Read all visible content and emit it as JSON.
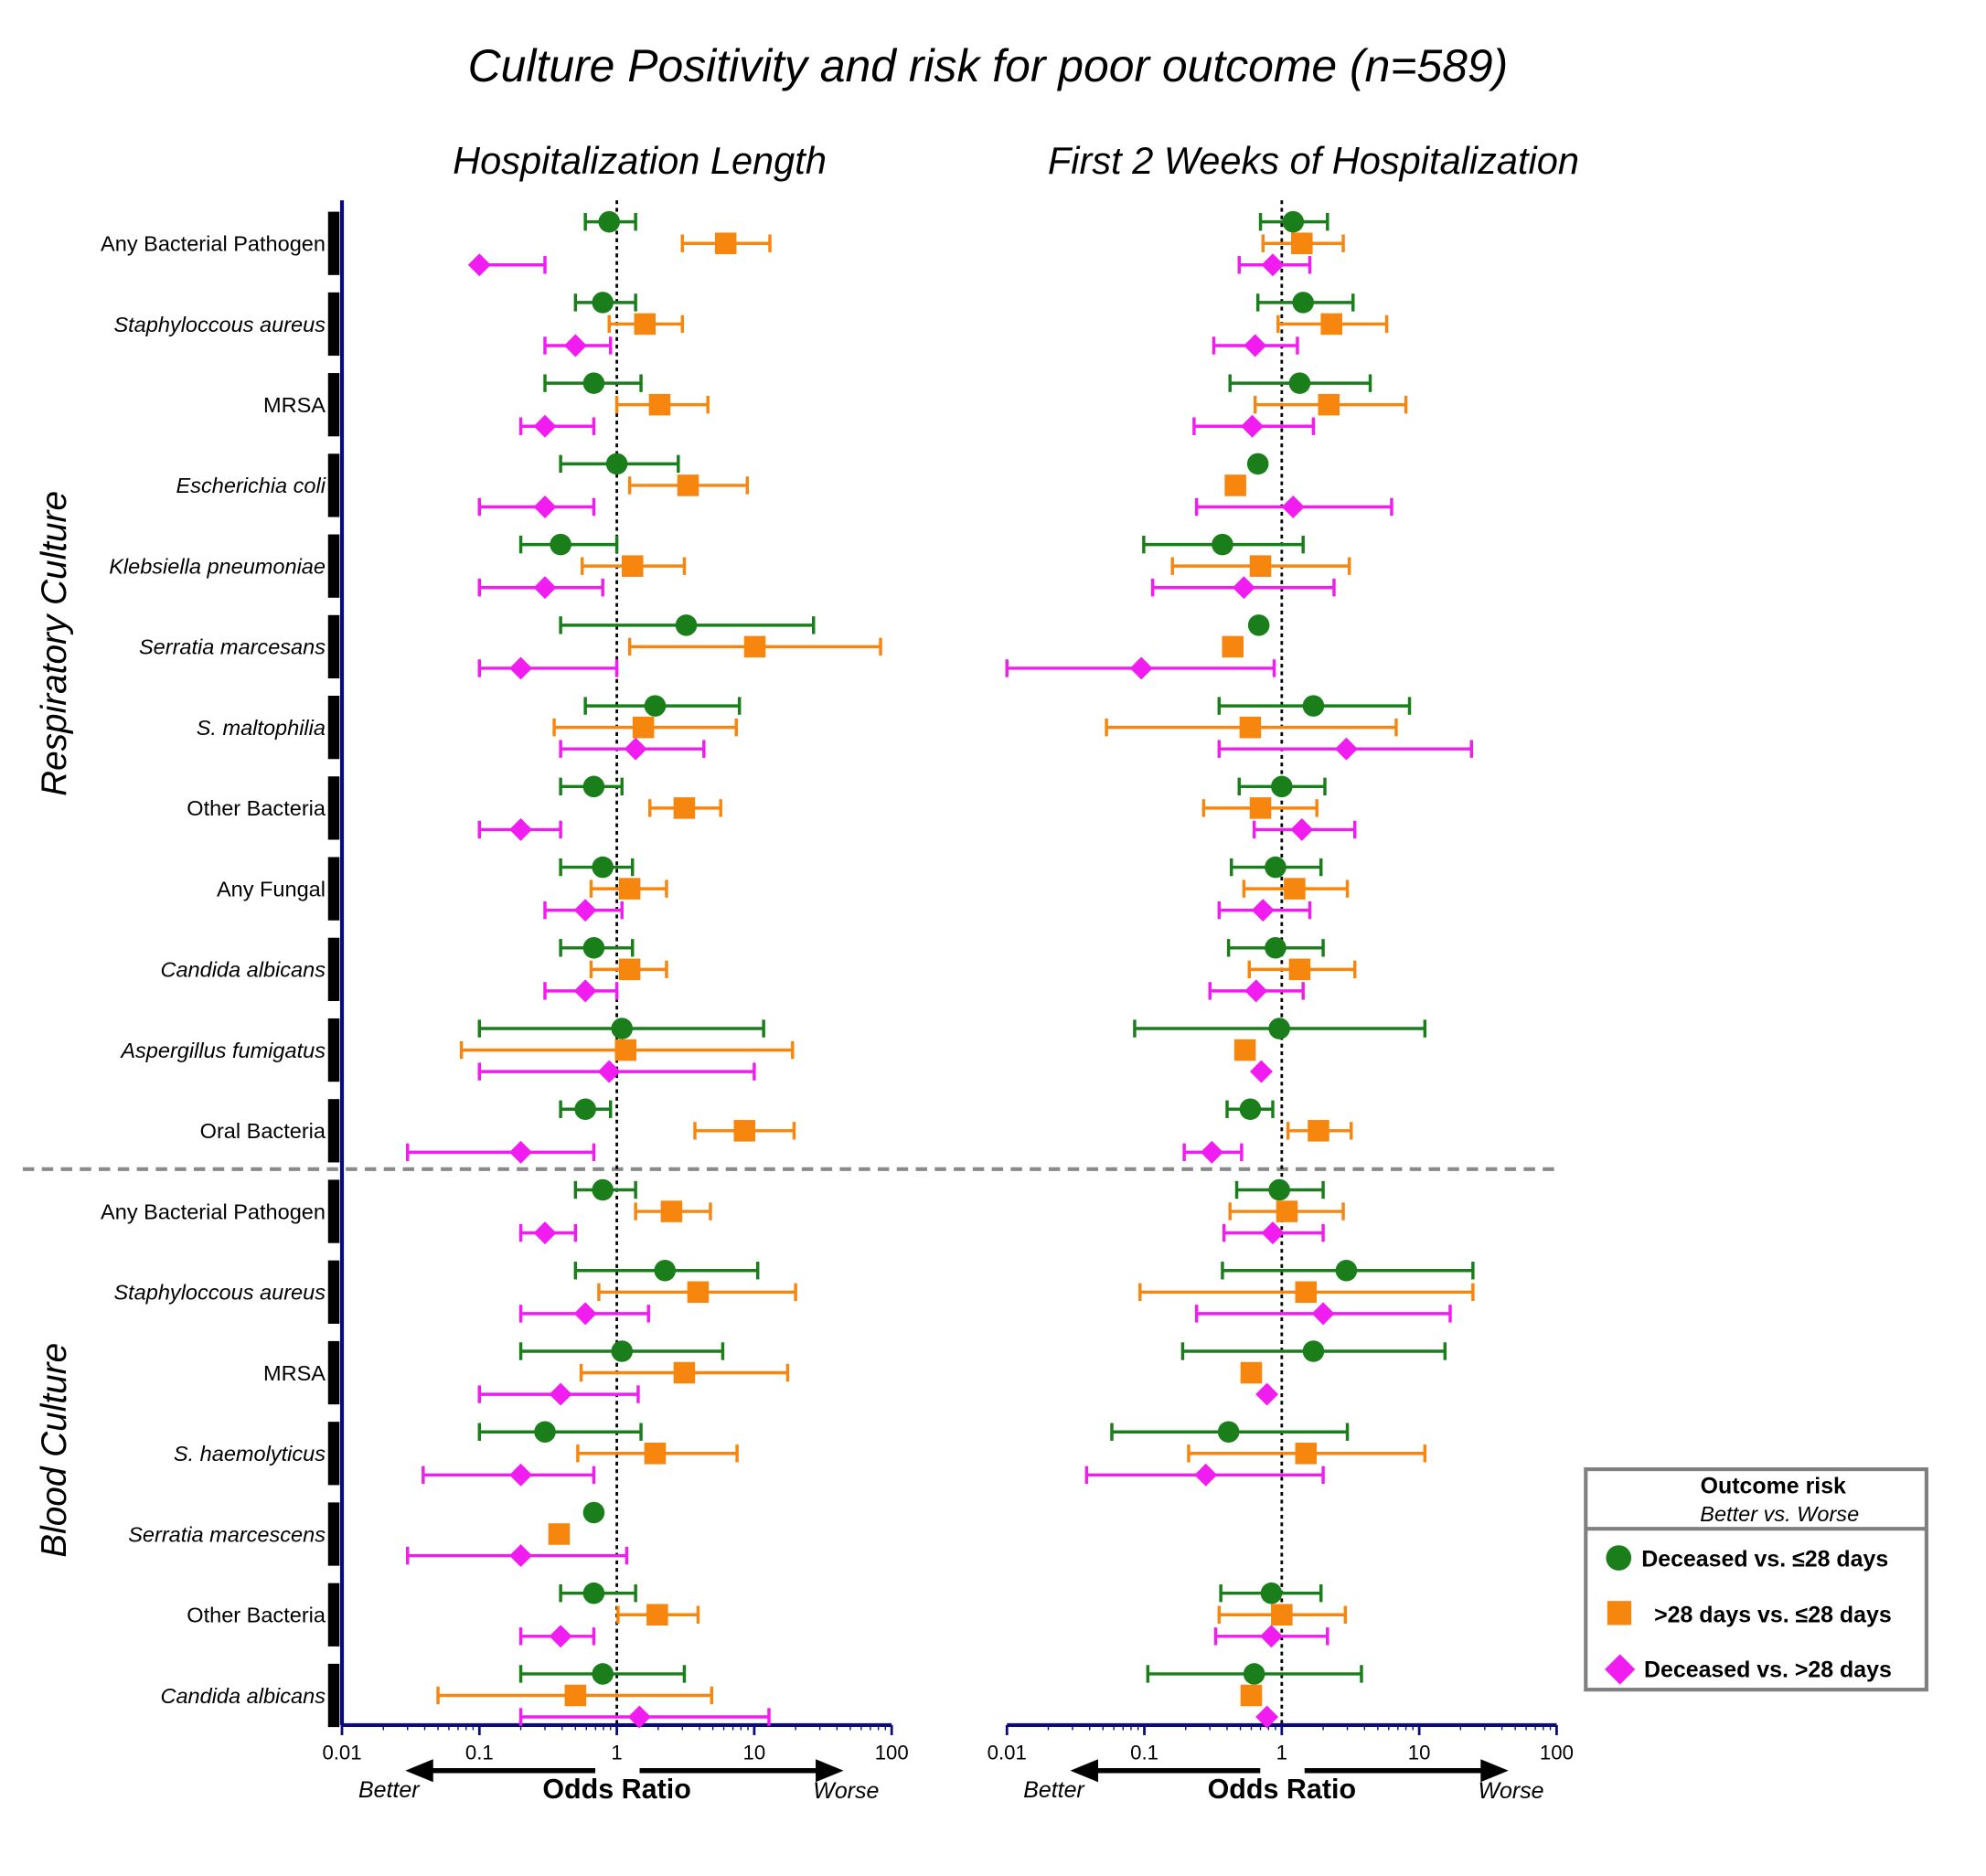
{
  "chart_data": {
    "type": "forest",
    "title": "Culture Positivity and risk for poor outcome (n=589)",
    "x_scale": "log",
    "xlim": [
      0.01,
      100
    ],
    "reference_line": 1,
    "x_ticks": [
      "0.01",
      "0.1",
      "1",
      "10",
      "100"
    ],
    "xlabel": "Odds Ratio",
    "x_left_annotation": "Better",
    "x_right_annotation": "Worse",
    "panels": [
      {
        "key": "left",
        "title": "Hospitalization Length"
      },
      {
        "key": "right",
        "title": "First 2 Weeks of Hospitalization"
      }
    ],
    "groups": [
      {
        "label": "Respiratory Culture"
      },
      {
        "label": "Blood Culture"
      }
    ],
    "colors": {
      "g": "#1a7f1a",
      "o": "#f7860f",
      "m": "#f01cf0",
      "axis": "#0a0a7a",
      "divider": "#8a8a8a"
    },
    "legend": {
      "title": "Outcome risk",
      "subtitle": "Better vs. Worse",
      "placement": "bottom-right",
      "entries": [
        {
          "key": "g",
          "label": "Deceased vs. ≤28 days",
          "marker": "circle"
        },
        {
          "key": "o",
          "label": ">28 days vs. ≤28 days",
          "marker": "square"
        },
        {
          "key": "m",
          "label": "Deceased vs. >28 days",
          "marker": "diamond"
        }
      ]
    },
    "series_order": [
      "g",
      "o",
      "m"
    ],
    "rows": [
      {
        "label": "Any Bacterial Pathogen",
        "italic": false,
        "group": 0,
        "left": {
          "g": [
            0.88,
            0.59,
            1.37
          ],
          "o": [
            6.2,
            3.0,
            13
          ],
          "m": [
            0.1,
            0.1,
            0.3
          ]
        },
        "right": {
          "g": [
            1.21,
            0.7,
            2.15
          ],
          "o": [
            1.4,
            0.73,
            2.8
          ],
          "m": [
            0.86,
            0.49,
            1.6
          ]
        }
      },
      {
        "label": "Staphyloccous aureus",
        "italic": true,
        "group": 0,
        "left": {
          "g": [
            0.79,
            0.5,
            1.37
          ],
          "o": [
            1.6,
            0.88,
            3.0
          ],
          "m": [
            0.5,
            0.3,
            0.9
          ]
        },
        "right": {
          "g": [
            1.43,
            0.67,
            3.3
          ],
          "o": [
            2.3,
            0.94,
            5.8
          ],
          "m": [
            0.64,
            0.32,
            1.3
          ]
        }
      },
      {
        "label": "MRSA",
        "italic": false,
        "group": 0,
        "left": {
          "g": [
            0.68,
            0.3,
            1.5
          ],
          "o": [
            2.05,
            1.0,
            4.6
          ],
          "m": [
            0.3,
            0.2,
            0.68
          ]
        },
        "right": {
          "g": [
            1.35,
            0.42,
            4.4
          ],
          "o": [
            2.2,
            0.64,
            8.0
          ],
          "m": [
            0.61,
            0.23,
            1.7
          ]
        }
      },
      {
        "label": "Escherichia coli",
        "italic": true,
        "group": 0,
        "left": {
          "g": [
            1.0,
            0.39,
            2.8
          ],
          "o": [
            3.3,
            1.24,
            8.9
          ],
          "m": [
            0.3,
            0.1,
            0.68
          ]
        },
        "right": {
          "g": [
            0.67,
            null,
            null
          ],
          "o": [
            0.46,
            null,
            null
          ],
          "m": [
            1.21,
            0.24,
            6.3
          ]
        }
      },
      {
        "label": "Klebsiella pneumoniae",
        "italic": true,
        "group": 0,
        "left": {
          "g": [
            0.39,
            0.2,
            1.0
          ],
          "o": [
            1.3,
            0.56,
            3.1
          ],
          "m": [
            0.3,
            0.1,
            0.79
          ]
        },
        "right": {
          "g": [
            0.37,
            0.099,
            1.43
          ],
          "o": [
            0.7,
            0.16,
            3.1
          ],
          "m": [
            0.53,
            0.115,
            2.4
          ]
        }
      },
      {
        "label": "Serratia marcesans",
        "italic": true,
        "group": 0,
        "left": {
          "g": [
            3.2,
            0.39,
            27
          ],
          "o": [
            10.1,
            1.24,
            83
          ],
          "m": [
            0.2,
            0.1,
            1.0
          ]
        },
        "right": {
          "g": [
            0.68,
            null,
            null
          ],
          "o": [
            0.44,
            null,
            null
          ],
          "m": [
            0.095,
            0.01,
            0.88
          ]
        }
      },
      {
        "label": "S. maltophilia",
        "italic": true,
        "group": 0,
        "left": {
          "g": [
            1.9,
            0.59,
            7.8
          ],
          "o": [
            1.56,
            0.35,
            7.4
          ],
          "m": [
            1.37,
            0.39,
            4.3
          ]
        },
        "right": {
          "g": [
            1.7,
            0.35,
            8.5
          ],
          "o": [
            0.59,
            0.053,
            6.8
          ],
          "m": [
            2.95,
            0.35,
            24
          ]
        }
      },
      {
        "label": "Other Bacteria",
        "italic": false,
        "group": 0,
        "left": {
          "g": [
            0.68,
            0.39,
            1.09
          ],
          "o": [
            3.1,
            1.74,
            5.7
          ],
          "m": [
            0.2,
            0.1,
            0.39
          ]
        },
        "right": {
          "g": [
            1.0,
            0.49,
            2.06
          ],
          "o": [
            0.7,
            0.27,
            1.8
          ],
          "m": [
            1.4,
            0.63,
            3.4
          ]
        }
      },
      {
        "label": "Any Fungal",
        "italic": false,
        "group": 0,
        "left": {
          "g": [
            0.79,
            0.39,
            1.3
          ],
          "o": [
            1.24,
            0.65,
            2.3
          ],
          "m": [
            0.59,
            0.3,
            1.09
          ]
        },
        "right": {
          "g": [
            0.9,
            0.43,
            1.93
          ],
          "o": [
            1.24,
            0.53,
            3.0
          ],
          "m": [
            0.73,
            0.35,
            1.6
          ]
        }
      },
      {
        "label": "Candida albicans",
        "italic": true,
        "group": 0,
        "left": {
          "g": [
            0.68,
            0.39,
            1.3
          ],
          "o": [
            1.24,
            0.65,
            2.3
          ],
          "m": [
            0.59,
            0.3,
            1.0
          ]
        },
        "right": {
          "g": [
            0.9,
            0.41,
            2.0
          ],
          "o": [
            1.35,
            0.58,
            3.4
          ],
          "m": [
            0.65,
            0.3,
            1.43
          ]
        }
      },
      {
        "label": "Aspergillus fumigatus",
        "italic": true,
        "group": 0,
        "left": {
          "g": [
            1.09,
            0.1,
            11.7
          ],
          "o": [
            1.16,
            0.074,
            19
          ],
          "m": [
            0.88,
            0.1,
            10
          ]
        },
        "right": {
          "g": [
            0.96,
            0.085,
            11
          ],
          "o": [
            0.54,
            null,
            null
          ],
          "m": [
            0.71,
            null,
            null
          ]
        }
      },
      {
        "label": "Oral Bacteria",
        "italic": false,
        "group": 0,
        "left": {
          "g": [
            0.59,
            0.39,
            0.9
          ],
          "o": [
            8.5,
            3.7,
            19.5
          ],
          "m": [
            0.2,
            0.03,
            0.68
          ]
        },
        "right": {
          "g": [
            0.59,
            0.4,
            0.86
          ],
          "o": [
            1.85,
            1.11,
            3.2
          ],
          "m": [
            0.31,
            0.195,
            0.51
          ]
        }
      },
      {
        "label": "Any Bacterial Pathogen",
        "italic": false,
        "group": 1,
        "left": {
          "g": [
            0.79,
            0.5,
            1.37
          ],
          "o": [
            2.5,
            1.37,
            4.8
          ],
          "m": [
            0.3,
            0.2,
            0.5
          ]
        },
        "right": {
          "g": [
            0.96,
            0.47,
            2.0
          ],
          "o": [
            1.09,
            0.42,
            2.8
          ],
          "m": [
            0.86,
            0.38,
            2.0
          ]
        }
      },
      {
        "label": "Staphyloccous aureus",
        "italic": true,
        "group": 1,
        "left": {
          "g": [
            2.24,
            0.5,
            10.6
          ],
          "o": [
            3.9,
            0.74,
            20
          ],
          "m": [
            0.59,
            0.2,
            1.7
          ]
        },
        "right": {
          "g": [
            2.95,
            0.37,
            24.6
          ],
          "o": [
            1.5,
            0.093,
            24.6
          ],
          "m": [
            2.0,
            0.24,
            16.8
          ]
        }
      },
      {
        "label": "MRSA",
        "italic": false,
        "group": 1,
        "left": {
          "g": [
            1.09,
            0.2,
            5.9
          ],
          "o": [
            3.1,
            0.55,
            17.5
          ],
          "m": [
            0.39,
            0.1,
            1.43
          ]
        },
        "right": {
          "g": [
            1.7,
            0.19,
            15.4
          ],
          "o": [
            0.6,
            null,
            null
          ],
          "m": [
            0.78,
            null,
            null
          ]
        }
      },
      {
        "label": "S. haemolyticus",
        "italic": true,
        "group": 1,
        "left": {
          "g": [
            0.3,
            0.1,
            1.5
          ],
          "o": [
            1.9,
            0.52,
            7.5
          ],
          "m": [
            0.2,
            0.039,
            0.68
          ]
        },
        "right": {
          "g": [
            0.41,
            0.058,
            3.0
          ],
          "o": [
            1.5,
            0.21,
            11
          ],
          "m": [
            0.28,
            0.038,
            2.0
          ]
        }
      },
      {
        "label": "Serratia marcescens",
        "italic": true,
        "group": 1,
        "left": {
          "g": [
            0.68,
            null,
            null
          ],
          "o": [
            0.38,
            null,
            null
          ],
          "m": [
            0.2,
            0.03,
            1.18
          ]
        },
        "right": {}
      },
      {
        "label": "Other Bacteria",
        "italic": false,
        "group": 1,
        "left": {
          "g": [
            0.68,
            0.39,
            1.37
          ],
          "o": [
            1.97,
            1.02,
            3.9
          ],
          "m": [
            0.39,
            0.2,
            0.68
          ]
        },
        "right": {
          "g": [
            0.84,
            0.36,
            1.93
          ],
          "o": [
            1.0,
            0.35,
            2.9
          ],
          "m": [
            0.84,
            0.33,
            2.15
          ]
        }
      },
      {
        "label": "Candida albicans",
        "italic": true,
        "group": 1,
        "left": {
          "g": [
            0.79,
            0.2,
            3.1
          ],
          "o": [
            0.5,
            0.05,
            4.9
          ],
          "m": [
            1.46,
            0.2,
            12.8
          ]
        },
        "right": {
          "g": [
            0.63,
            0.106,
            3.8
          ],
          "o": [
            0.6,
            null,
            null
          ],
          "m": [
            0.78,
            null,
            null
          ]
        }
      }
    ]
  }
}
